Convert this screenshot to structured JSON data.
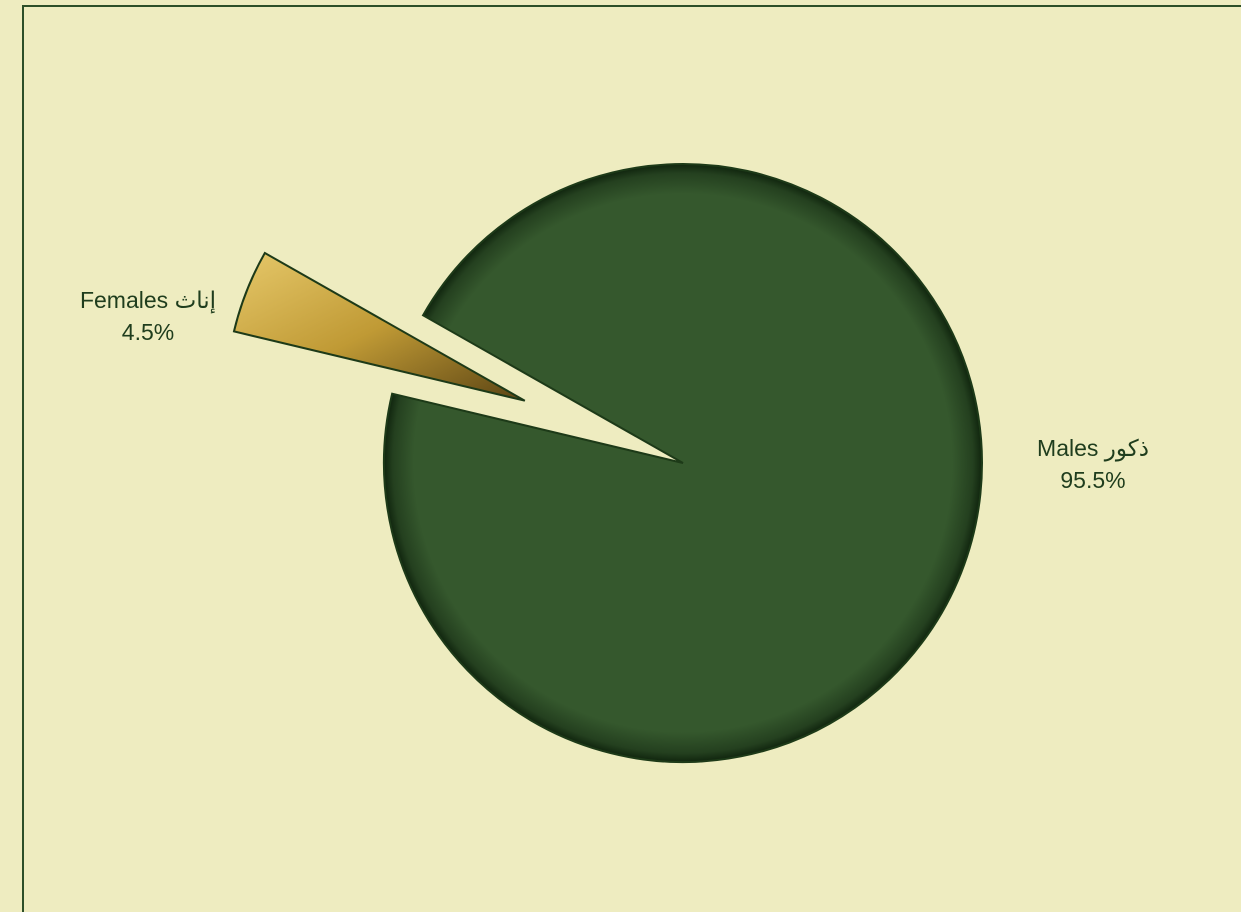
{
  "chart_data": {
    "type": "pie",
    "categories": [
      "Males ذكور",
      "Females إناث"
    ],
    "values": [
      95.5,
      4.5
    ],
    "value_labels": [
      "95.5%",
      "4.5%"
    ],
    "colors": [
      "#355a2e",
      "#c9a53e"
    ]
  }
}
